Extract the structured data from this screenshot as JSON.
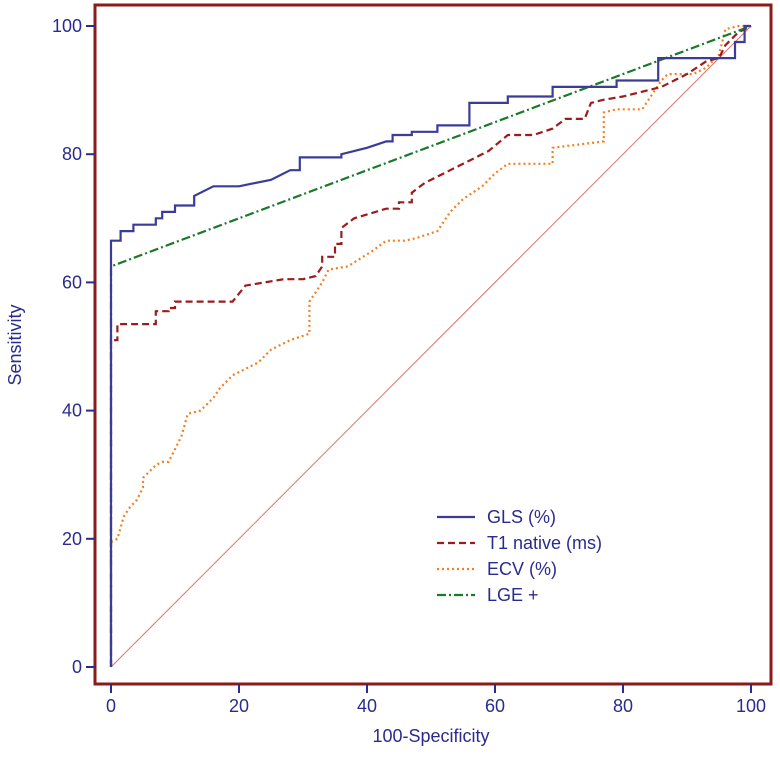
{
  "chart_data": {
    "type": "line",
    "title": "",
    "xlabel": "100-Specificity",
    "ylabel": "Sensitivity",
    "xlim": [
      0,
      100
    ],
    "ylim": [
      0,
      100
    ],
    "xticks": [
      0,
      20,
      40,
      60,
      80,
      100
    ],
    "yticks": [
      0,
      20,
      40,
      60,
      80,
      100
    ],
    "legend_position": "lower-right",
    "frame_color": "#8b1a1a",
    "tick_color": "#2b2b8f",
    "reference_line": {
      "name": "diagonal",
      "color": "#e07070",
      "x": [
        0,
        100
      ],
      "y": [
        0,
        100
      ]
    },
    "series": [
      {
        "name": "GLS (%)",
        "color": "#3b3b9a",
        "dash": "solid",
        "x": [
          0,
          0,
          1.5,
          1.5,
          3.5,
          3.5,
          7,
          7,
          8,
          8,
          10,
          10,
          13,
          13,
          16,
          20,
          25,
          28,
          29.5,
          29.5,
          36,
          36,
          40,
          43,
          44,
          44,
          47,
          47,
          51,
          51,
          56,
          56,
          62,
          62,
          69,
          69,
          79,
          79,
          85.5,
          85.5,
          97.5,
          97.5,
          99,
          99,
          100
        ],
        "y": [
          0,
          66.5,
          66.5,
          68,
          68,
          69,
          69,
          70,
          70,
          71,
          71,
          72,
          72,
          73.5,
          75,
          75,
          76,
          77.5,
          77.5,
          79.5,
          79.5,
          80,
          81,
          82,
          82,
          83,
          83,
          83.5,
          83.5,
          84.5,
          84.5,
          88,
          88,
          89,
          89,
          90.5,
          90.5,
          91.5,
          91.5,
          95,
          95,
          97.5,
          97.5,
          100,
          100
        ]
      },
      {
        "name": "T1 native (ms)",
        "color": "#9b1c1c",
        "dash": "dashed",
        "x": [
          0,
          0,
          1,
          1,
          7,
          7,
          9,
          9,
          10,
          10,
          19,
          21,
          27,
          30,
          32,
          33,
          33,
          35,
          35,
          36,
          36,
          38,
          43,
          45,
          45,
          47,
          47,
          49,
          51,
          53,
          59,
          62,
          66,
          69,
          71,
          74,
          75,
          77,
          80,
          84,
          86,
          90,
          93,
          95,
          96,
          98,
          100
        ],
        "y": [
          0,
          51,
          51,
          53.5,
          53.5,
          55.5,
          55.5,
          56,
          56,
          57,
          57,
          59.5,
          60.5,
          60.5,
          61,
          62.5,
          64,
          64,
          66,
          66,
          68.5,
          70,
          71.5,
          71.5,
          72.5,
          72.5,
          74,
          75.5,
          76.5,
          77.5,
          80.5,
          83,
          83,
          84,
          85.5,
          85.5,
          88,
          88.5,
          89,
          90,
          90.5,
          92.5,
          94.5,
          95,
          97,
          99,
          100
        ]
      },
      {
        "name": "ECV (%)",
        "color": "#f08020",
        "dash": "dotted",
        "x": [
          0,
          0,
          1,
          2,
          3,
          4,
          5,
          5,
          7,
          8,
          9,
          10,
          11,
          12,
          14,
          15,
          16,
          17,
          18,
          19,
          21,
          23,
          25,
          28,
          31,
          31,
          33,
          34,
          37,
          41,
          43,
          46,
          48,
          51,
          52,
          53,
          55,
          58,
          59,
          60,
          62,
          65,
          69,
          69,
          73,
          77,
          77,
          79,
          83,
          84,
          86,
          87,
          89,
          91,
          93,
          95,
          96,
          98,
          100
        ],
        "y": [
          0,
          19.5,
          20,
          23.5,
          25,
          26,
          28,
          29.5,
          31.5,
          32,
          32,
          34,
          36,
          39.5,
          40,
          41,
          42,
          43.5,
          44.5,
          45.5,
          46.5,
          47.5,
          49.5,
          51,
          52,
          57,
          60,
          62,
          62.5,
          65,
          66.5,
          66.5,
          67,
          68,
          69.5,
          71,
          73,
          75,
          76,
          77,
          78.5,
          78.5,
          78.5,
          81,
          81.5,
          82,
          86.5,
          87,
          87,
          88.5,
          91.5,
          92.5,
          92.5,
          92.5,
          93.5,
          95.5,
          99.5,
          100,
          100
        ]
      },
      {
        "name": "LGE +",
        "color": "#1a7a2a",
        "dash": "dash-dot",
        "x": [
          0,
          0,
          100
        ],
        "y": [
          0,
          62.5,
          100
        ]
      }
    ]
  }
}
